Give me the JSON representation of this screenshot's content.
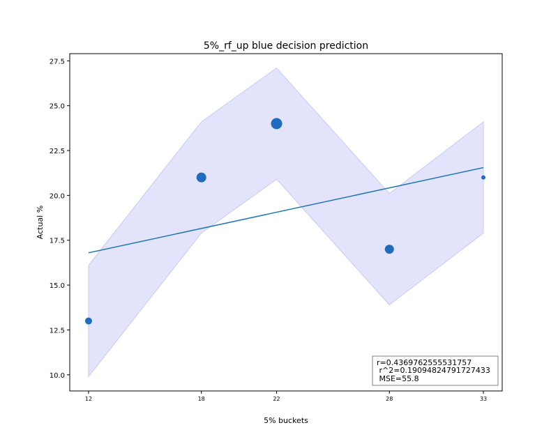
{
  "chart_data": {
    "type": "scatter",
    "title": "5%_rf_up blue decision prediction",
    "xlabel": "5% buckets",
    "ylabel": "Actual %",
    "xlim": [
      11,
      34
    ],
    "ylim": [
      9.1,
      27.9
    ],
    "xticks": [
      12,
      18,
      22,
      28,
      33
    ],
    "yticks": [
      10.0,
      12.5,
      15.0,
      17.5,
      20.0,
      22.5,
      25.0,
      27.5
    ],
    "ytick_labels": [
      "10.0",
      "12.5",
      "15.0",
      "17.5",
      "20.0",
      "22.5",
      "25.0",
      "27.5"
    ],
    "points": [
      {
        "x": 12,
        "y": 13,
        "size": 5
      },
      {
        "x": 18,
        "y": 21,
        "size": 7
      },
      {
        "x": 22,
        "y": 24,
        "size": 8
      },
      {
        "x": 28,
        "y": 17,
        "size": 6.5
      },
      {
        "x": 33,
        "y": 21,
        "size": 3
      }
    ],
    "fit_line": {
      "x": [
        12,
        33
      ],
      "y": [
        16.8,
        21.55
      ]
    },
    "confidence_band": {
      "x": [
        12,
        18,
        22,
        28,
        33
      ],
      "upper": [
        16.1,
        24.1,
        27.1,
        20.1,
        24.1
      ],
      "lower": [
        9.9,
        17.9,
        20.9,
        13.9,
        17.9
      ]
    },
    "stats": {
      "r": "r=0.4369762555531757",
      "r2": " r^2=0.19094824791727433",
      "mse": " MSE=55.8"
    },
    "colors": {
      "point": "#1f6bbd",
      "line": "#1f77b4",
      "band": "#e3e3fb",
      "band_edge": "#c9c9f5"
    }
  }
}
